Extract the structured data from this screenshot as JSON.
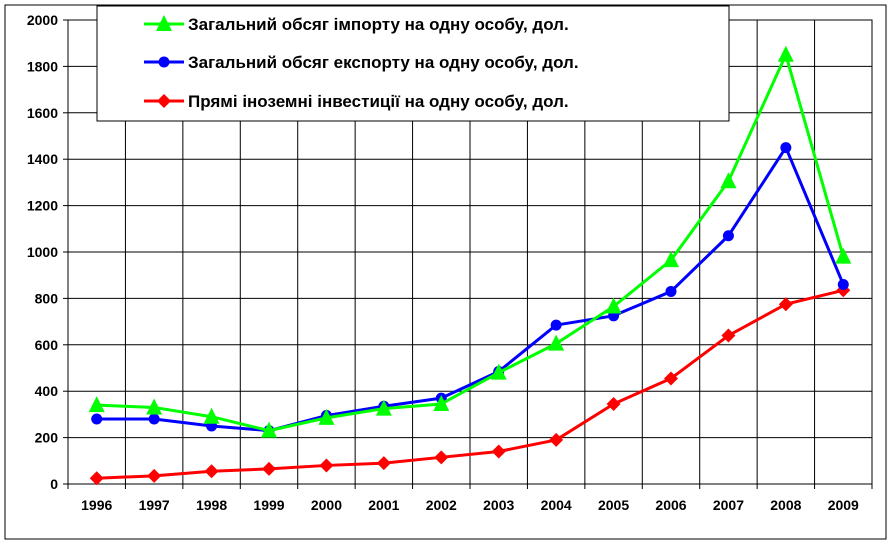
{
  "chart_data": {
    "type": "line",
    "title": "",
    "xlabel": "",
    "ylabel": "",
    "categories": [
      "1996",
      "1997",
      "1998",
      "1999",
      "2000",
      "2001",
      "2002",
      "2003",
      "2004",
      "2005",
      "2006",
      "2007",
      "2008",
      "2009"
    ],
    "ylim": [
      0,
      2000
    ],
    "yticks": [
      0,
      200,
      400,
      600,
      800,
      1000,
      1200,
      1400,
      1600,
      1800,
      2000
    ],
    "grid": true,
    "legend_position": "top-left",
    "series": [
      {
        "name": "Загальний обсяг імпорту на одну особу, дол.",
        "color": "#00ff00",
        "marker": "triangle",
        "values": [
          340,
          330,
          290,
          230,
          285,
          325,
          345,
          480,
          605,
          765,
          965,
          1305,
          1850,
          980
        ]
      },
      {
        "name": "Загальний обсяг експорту на одну особу, дол.",
        "color": "#0000ff",
        "marker": "circle",
        "values": [
          280,
          280,
          250,
          230,
          295,
          335,
          370,
          485,
          685,
          725,
          830,
          1070,
          1450,
          860
        ]
      },
      {
        "name": "Прямі іноземні інвестиції на одну особу, дол.",
        "color": "#ff0000",
        "marker": "diamond",
        "values": [
          25,
          35,
          55,
          65,
          80,
          90,
          115,
          140,
          190,
          345,
          455,
          640,
          775,
          835
        ]
      }
    ]
  }
}
